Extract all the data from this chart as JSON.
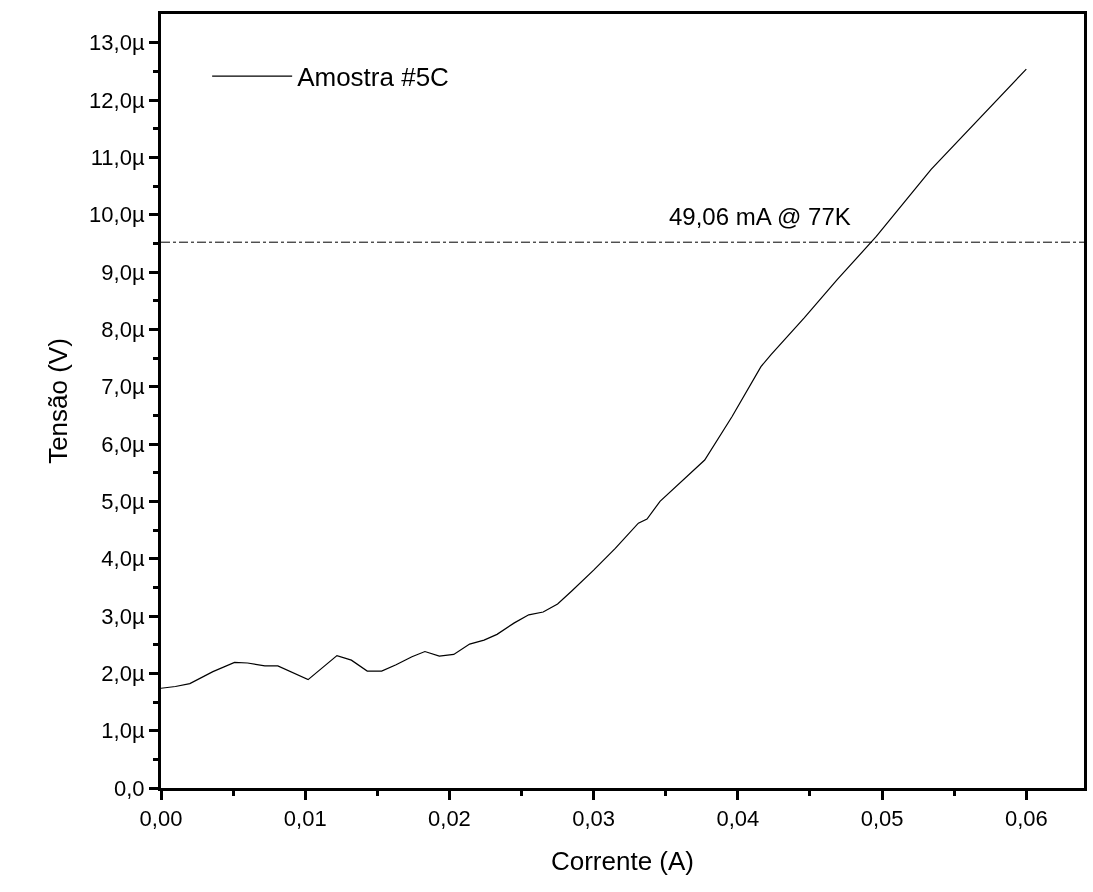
{
  "chart_data": {
    "type": "line",
    "xlabel": "Corrente (A)",
    "ylabel": "Tensão (V)",
    "x": [
      0,
      0.001,
      0.002,
      0.0036,
      0.0051,
      0.006,
      0.0072,
      0.0081,
      0.0102,
      0.0122,
      0.0132,
      0.0143,
      0.0153,
      0.0163,
      0.0174,
      0.0183,
      0.0193,
      0.0203,
      0.0214,
      0.0224,
      0.0233,
      0.0245,
      0.0255,
      0.0265,
      0.0275,
      0.0285,
      0.03,
      0.0315,
      0.0331,
      0.0337,
      0.0346,
      0.0377,
      0.0396,
      0.0416,
      0.0423,
      0.0446,
      0.0469,
      0.0496,
      0.0534,
      0.06
    ],
    "series": [
      {
        "name": "Amostra #5C",
        "color": "#000000",
        "values": [
          1.74,
          1.77,
          1.82,
          2.03,
          2.19,
          2.18,
          2.13,
          2.13,
          1.89,
          2.31,
          2.23,
          2.04,
          2.04,
          2.15,
          2.29,
          2.38,
          2.3,
          2.33,
          2.51,
          2.58,
          2.68,
          2.88,
          3.02,
          3.07,
          3.21,
          3.44,
          3.8,
          4.18,
          4.62,
          4.69,
          5.0,
          5.72,
          6.48,
          7.35,
          7.56,
          8.2,
          8.87,
          9.62,
          10.79,
          12.54
        ]
      }
    ],
    "xlim": [
      0,
      0.064
    ],
    "xticks": [
      {
        "value": 0,
        "label": "0,00"
      },
      {
        "value": 0.005,
        "label": null
      },
      {
        "value": 0.01,
        "label": "0,01"
      },
      {
        "value": 0.015,
        "label": null
      },
      {
        "value": 0.02,
        "label": "0,02"
      },
      {
        "value": 0.025,
        "label": null
      },
      {
        "value": 0.03,
        "label": "0,03"
      },
      {
        "value": 0.035,
        "label": null
      },
      {
        "value": 0.04,
        "label": "0,04"
      },
      {
        "value": 0.045,
        "label": null
      },
      {
        "value": 0.05,
        "label": "0,05"
      },
      {
        "value": 0.055,
        "label": null
      },
      {
        "value": 0.06,
        "label": "0,06"
      }
    ],
    "ylim": [
      0,
      13.5
    ],
    "yticks": [
      {
        "value": 0,
        "label": "0,0"
      },
      {
        "value": 0.5,
        "label": null
      },
      {
        "value": 1,
        "label": "1,0µ"
      },
      {
        "value": 1.5,
        "label": null
      },
      {
        "value": 2,
        "label": "2,0µ"
      },
      {
        "value": 2.5,
        "label": null
      },
      {
        "value": 3,
        "label": "3,0µ"
      },
      {
        "value": 3.5,
        "label": null
      },
      {
        "value": 4,
        "label": "4,0µ"
      },
      {
        "value": 4.5,
        "label": null
      },
      {
        "value": 5,
        "label": "5,0µ"
      },
      {
        "value": 5.5,
        "label": null
      },
      {
        "value": 6,
        "label": "6,0µ"
      },
      {
        "value": 6.5,
        "label": null
      },
      {
        "value": 7,
        "label": "7,0µ"
      },
      {
        "value": 7.5,
        "label": null
      },
      {
        "value": 8,
        "label": "8,0µ"
      },
      {
        "value": 8.5,
        "label": null
      },
      {
        "value": 9,
        "label": "9,0µ"
      },
      {
        "value": 9.5,
        "label": null
      },
      {
        "value": 10,
        "label": "10,0µ"
      },
      {
        "value": 10.5,
        "label": null
      },
      {
        "value": 11,
        "label": "11,0µ"
      },
      {
        "value": 11.5,
        "label": null
      },
      {
        "value": 12,
        "label": "12,0µ"
      },
      {
        "value": 12.5,
        "label": null
      },
      {
        "value": 13,
        "label": "13,0µ"
      }
    ],
    "ref_lines": [
      {
        "axis": "y",
        "value": 9.52,
        "label": "49,06 mA @ 77K",
        "color": "#000000",
        "line_style": "dashdot"
      }
    ],
    "legend": "top left",
    "marker": "none",
    "line_style": "solid"
  }
}
